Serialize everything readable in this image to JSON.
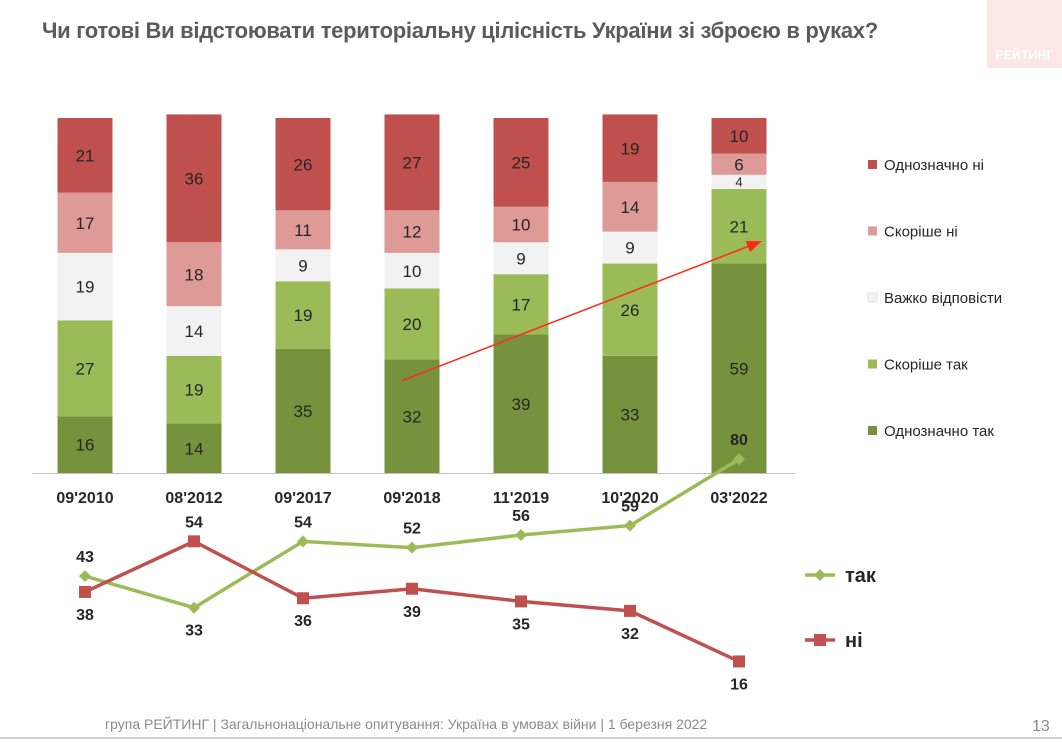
{
  "title": "Чи готові Ви відстоювати територіальну цілісність України зі зброєю в руках?",
  "logo_text": "РЕЙТИНГ",
  "footer": "група РЕЙТИНГ | Загальнонаціональне опитування: Україна в умовах війни | 1 березня 2022",
  "page_number": "13",
  "colors": {
    "strongly_no": "#c0504d",
    "rather_no": "#dd9a97",
    "hard_to_say": "#f2f2f2",
    "rather_yes": "#9bbb59",
    "strongly_yes": "#76923c",
    "trend_arrow": "#ff2a1a"
  },
  "chart_data": [
    {
      "type": "bar",
      "stacked": true,
      "categories": [
        "09'2010",
        "08'2012",
        "09'2017",
        "09'2018",
        "11'2019",
        "10'2020",
        "03'2022"
      ],
      "series": [
        {
          "name": "Однозначно так",
          "color": "#76923c",
          "values": [
            16,
            14,
            35,
            32,
            39,
            33,
            59
          ]
        },
        {
          "name": "Скоріше так",
          "color": "#9bbb59",
          "values": [
            27,
            19,
            19,
            20,
            17,
            26,
            21
          ]
        },
        {
          "name": "Важко відповісти",
          "color": "#f2f2f2",
          "values": [
            19,
            14,
            9,
            10,
            9,
            9,
            4
          ]
        },
        {
          "name": "Скоріше ні",
          "color": "#dd9a97",
          "values": [
            17,
            18,
            11,
            12,
            10,
            14,
            6
          ]
        },
        {
          "name": "Однозначно ні",
          "color": "#c0504d",
          "values": [
            21,
            36,
            26,
            27,
            25,
            19,
            10
          ]
        }
      ],
      "legend_order": [
        "Однозначно ні",
        "Скоріше ні",
        "Важко відповісти",
        "Скоріше так",
        "Однозначно так"
      ],
      "legend_position": "right",
      "ylim": [
        0,
        100
      ],
      "annotation": "arrow rising from 09'2018 to 03'2022"
    },
    {
      "type": "line",
      "categories": [
        "09'2010",
        "08'2012",
        "09'2017",
        "09'2018",
        "11'2019",
        "10'2020",
        "03'2022"
      ],
      "series": [
        {
          "name": "так",
          "color": "#9bbb59",
          "marker": "diamond",
          "values": [
            43,
            33,
            54,
            52,
            56,
            59,
            80
          ]
        },
        {
          "name": "ні",
          "color": "#c0504d",
          "marker": "square",
          "values": [
            38,
            54,
            36,
            39,
            35,
            32,
            16
          ]
        }
      ],
      "legend_position": "right"
    }
  ]
}
